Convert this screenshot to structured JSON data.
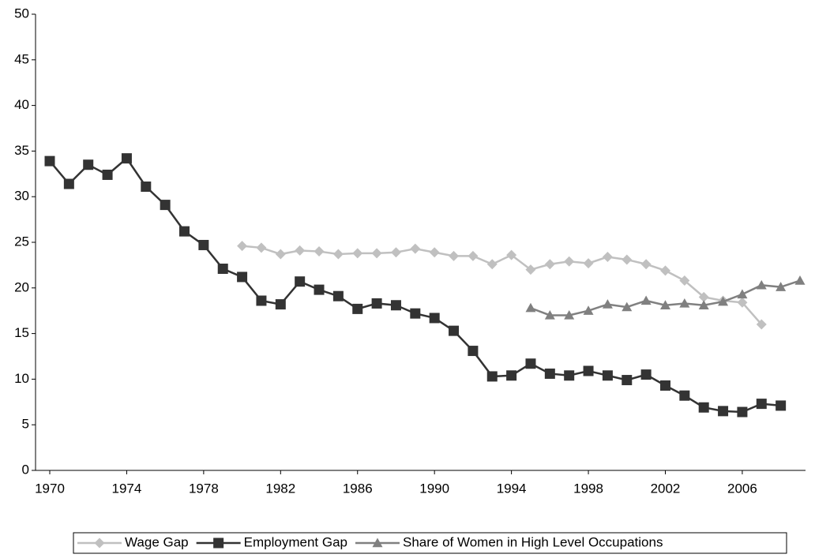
{
  "chart_data": {
    "type": "line",
    "x": [
      1970,
      1971,
      1972,
      1973,
      1974,
      1975,
      1976,
      1977,
      1978,
      1979,
      1980,
      1981,
      1982,
      1983,
      1984,
      1985,
      1986,
      1987,
      1988,
      1989,
      1990,
      1991,
      1992,
      1993,
      1994,
      1995,
      1996,
      1997,
      1998,
      1999,
      2000,
      2001,
      2002,
      2003,
      2004,
      2005,
      2006,
      2007,
      2008,
      2009
    ],
    "xlim": [
      1970,
      2009
    ],
    "xticks": [
      1970,
      1974,
      1978,
      1982,
      1986,
      1990,
      1994,
      1998,
      2002,
      2006
    ],
    "ylim": [
      0,
      50
    ],
    "yticks": [
      0,
      5,
      10,
      15,
      20,
      25,
      30,
      35,
      40,
      45,
      50
    ],
    "legend": "bottom",
    "series": [
      {
        "name": "Wage Gap",
        "color": "#c0c0c0",
        "marker": "diamond",
        "values": [
          null,
          null,
          null,
          null,
          null,
          null,
          null,
          null,
          null,
          null,
          24.6,
          24.4,
          23.7,
          24.1,
          24.0,
          23.7,
          23.8,
          23.8,
          23.9,
          24.3,
          23.9,
          23.5,
          23.5,
          22.6,
          23.6,
          22.0,
          22.6,
          22.9,
          22.7,
          23.4,
          23.1,
          22.6,
          21.9,
          20.8,
          19.0,
          18.6,
          18.4,
          16.0,
          null,
          null
        ]
      },
      {
        "name": "Employment Gap",
        "color": "#333333",
        "marker": "square",
        "values": [
          33.9,
          31.4,
          33.5,
          32.4,
          34.2,
          31.1,
          29.1,
          26.2,
          24.7,
          22.1,
          21.2,
          18.6,
          18.2,
          20.7,
          19.8,
          19.1,
          17.7,
          18.3,
          18.1,
          17.2,
          16.7,
          15.3,
          13.1,
          10.3,
          10.4,
          11.7,
          10.6,
          10.4,
          10.9,
          10.4,
          9.9,
          10.5,
          9.3,
          8.2,
          6.9,
          6.5,
          6.4,
          7.3,
          7.1,
          null
        ]
      },
      {
        "name": "Share of Women in High Level Occupations",
        "color": "#808080",
        "marker": "triangle",
        "values": [
          null,
          null,
          null,
          null,
          null,
          null,
          null,
          null,
          null,
          null,
          null,
          null,
          null,
          null,
          null,
          null,
          null,
          null,
          null,
          null,
          null,
          null,
          null,
          null,
          null,
          17.8,
          17.0,
          17.0,
          17.5,
          18.2,
          17.9,
          18.6,
          18.1,
          18.3,
          18.1,
          18.5,
          19.3,
          20.3,
          20.1,
          20.8
        ]
      }
    ]
  }
}
